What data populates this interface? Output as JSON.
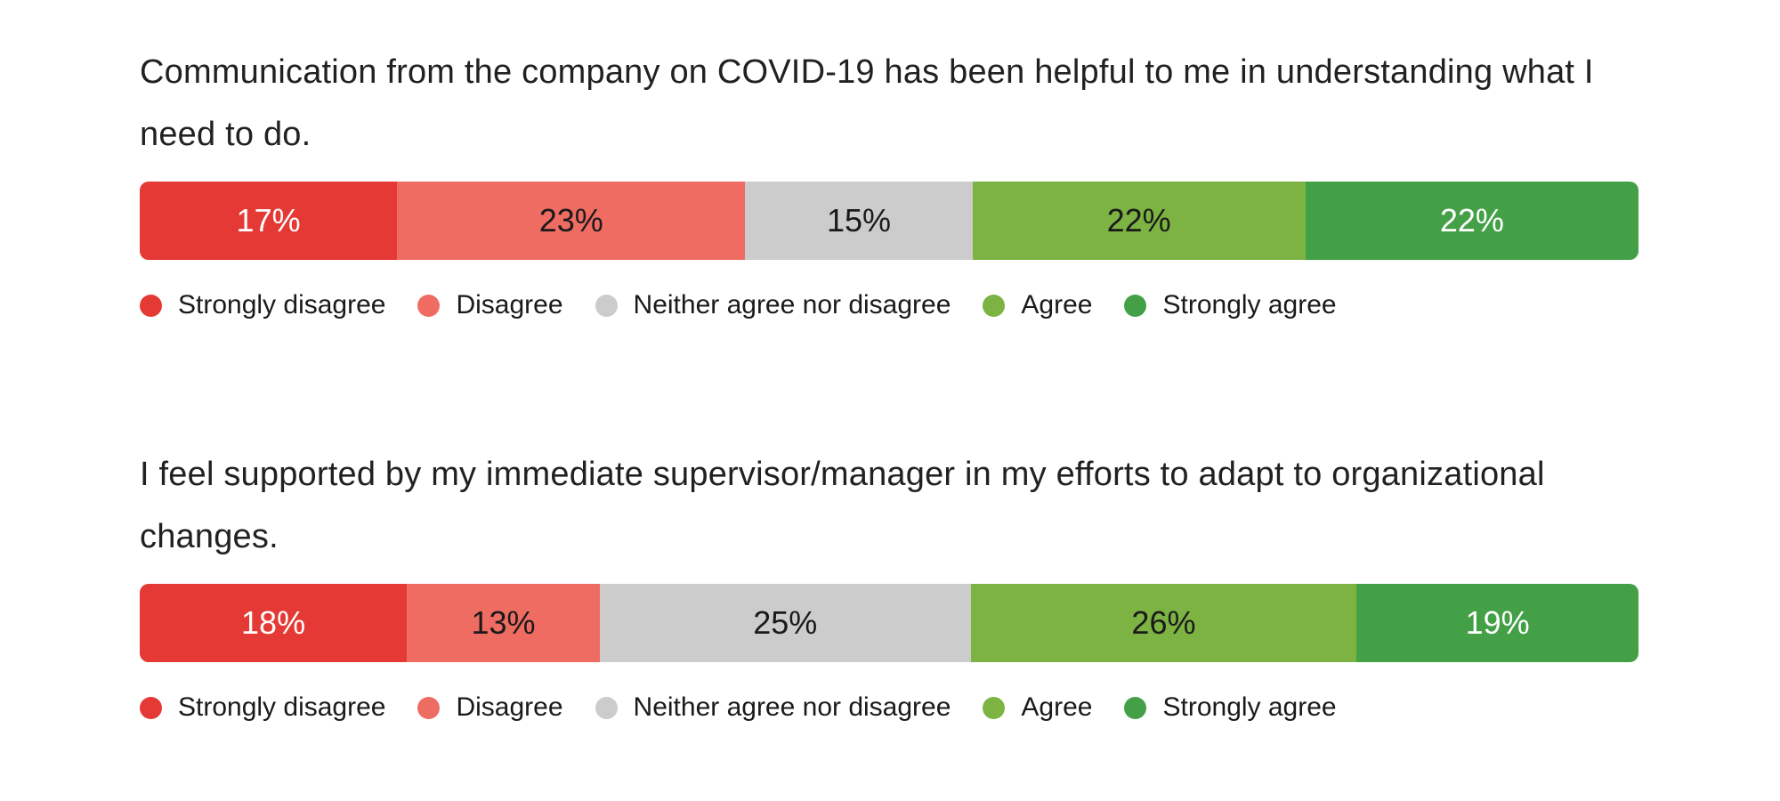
{
  "page": {
    "background": "#ffffff"
  },
  "text_colors": {
    "question": "#212121",
    "legend": "#1a1a1a"
  },
  "likert_scale": {
    "categories": [
      {
        "label": "Strongly disagree",
        "color": "#e53935",
        "value_label_color": "#ffffff"
      },
      {
        "label": "Disagree",
        "color": "#ef6c63",
        "value_label_color": "#1a1a1a"
      },
      {
        "label": "Neither agree nor disagree",
        "color": "#cccccc",
        "value_label_color": "#1a1a1a"
      },
      {
        "label": "Agree",
        "color": "#7cb342",
        "value_label_color": "#1a1a1a"
      },
      {
        "label": "Strongly agree",
        "color": "#43a047",
        "value_label_color": "#ffffff"
      }
    ]
  },
  "chart_data": [
    {
      "type": "bar",
      "variant": "horizontal-stacked-percentage",
      "title": "Communication from the company on COVID-19 has been helpful to me in understanding what I need to do.",
      "title_lines": [
        "Communication from the company on COVID-19 has been helpful to me in understanding what I",
        "need to do."
      ],
      "categories": [
        "Strongly disagree",
        "Disagree",
        "Neither agree nor disagree",
        "Agree",
        "Strongly agree"
      ],
      "values": [
        17,
        23,
        15,
        22,
        22
      ],
      "labels": [
        "17%",
        "23%",
        "15%",
        "22%",
        "22%"
      ],
      "unit": "%",
      "legend_position": "bottom",
      "grid": false
    },
    {
      "type": "bar",
      "variant": "horizontal-stacked-percentage",
      "title": "I feel supported by my immediate supervisor/manager in my efforts to adapt to organizational changes.",
      "title_lines": [
        "I feel supported by my immediate supervisor/manager in my efforts to adapt to organizational",
        "changes."
      ],
      "categories": [
        "Strongly disagree",
        "Disagree",
        "Neither agree nor disagree",
        "Agree",
        "Strongly agree"
      ],
      "values": [
        18,
        13,
        25,
        26,
        19
      ],
      "labels": [
        "18%",
        "13%",
        "25%",
        "26%",
        "19%"
      ],
      "unit": "%",
      "legend_position": "bottom",
      "grid": false
    }
  ]
}
